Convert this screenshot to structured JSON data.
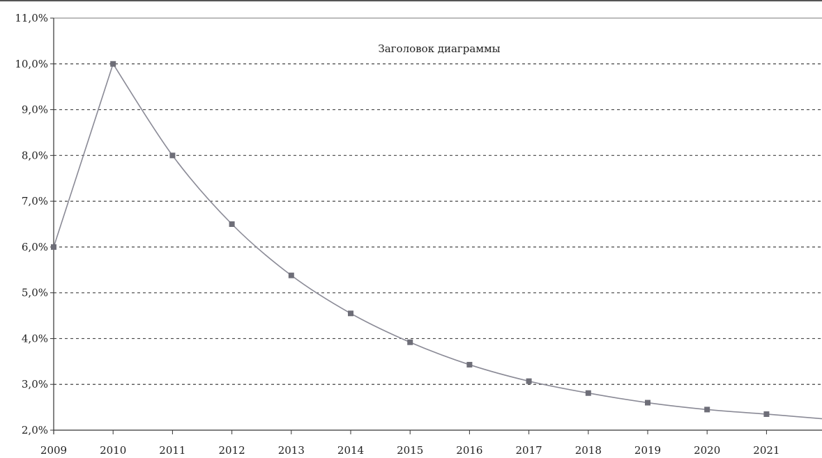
{
  "chart_data": {
    "type": "line",
    "title": "Заголовок диаграммы",
    "xlabel": "",
    "ylabel": "",
    "x": [
      "2009",
      "2010",
      "2011",
      "2012",
      "2013",
      "2014",
      "2015",
      "2016",
      "2017",
      "2018",
      "2019",
      "2020",
      "2021"
    ],
    "series": [
      {
        "values": [
          6.0,
          10.0,
          8.0,
          6.5,
          5.38,
          4.55,
          3.92,
          3.43,
          3.07,
          2.81,
          2.6,
          2.45,
          2.35
        ],
        "line_end_value": 2.25,
        "color": "#8a8a96",
        "marker_color": "#6e6e78"
      }
    ],
    "ylim": [
      2.0,
      11.0
    ],
    "yticks": [
      2,
      3,
      4,
      5,
      6,
      7,
      8,
      9,
      10,
      11
    ],
    "ytick_labels": [
      "2,0%",
      "3,0%",
      "4,0%",
      "5,0%",
      "6,0%",
      "7,0%",
      "8,0%",
      "9,0%",
      "10,0%",
      "11,0%"
    ],
    "grid": true,
    "grid_style": "dashed",
    "legend": "none",
    "colors": {
      "grid": "#444444",
      "axis": "#333333",
      "frame": "#777777"
    }
  }
}
